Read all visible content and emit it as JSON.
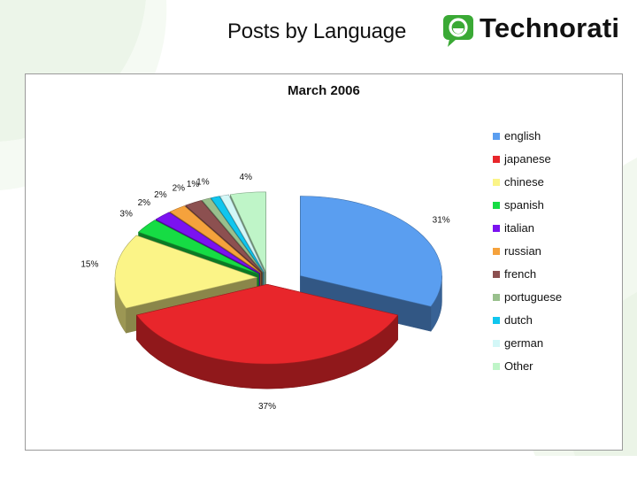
{
  "slide": {
    "title": "Posts by Language",
    "logo_text": "Technorati",
    "logo_color": "#3aa935"
  },
  "chart_data": {
    "type": "pie",
    "title": "March 2006",
    "legend_position": "right",
    "slices": [
      {
        "name": "english",
        "value": 31,
        "label": "31%",
        "color": "#5a9ef0"
      },
      {
        "name": "japanese",
        "value": 37,
        "label": "37%",
        "color": "#e8262b"
      },
      {
        "name": "chinese",
        "value": 15,
        "label": "15%",
        "color": "#fbf487"
      },
      {
        "name": "spanish",
        "value": 3,
        "label": "3%",
        "color": "#16dc44"
      },
      {
        "name": "italian",
        "value": 2,
        "label": "2%",
        "color": "#7b12f0"
      },
      {
        "name": "russian",
        "value": 2,
        "label": "2%",
        "color": "#f5a23c"
      },
      {
        "name": "french",
        "value": 2,
        "label": "2%",
        "color": "#8c5050"
      },
      {
        "name": "portuguese",
        "value": 1,
        "label": "1%",
        "color": "#99c08d"
      },
      {
        "name": "dutch",
        "value": 1,
        "label": "1%",
        "color": "#10c6ee"
      },
      {
        "name": "german",
        "value": 1,
        "label": "",
        "color": "#d3f7f7"
      },
      {
        "name": "Other",
        "value": 4,
        "label": "4%",
        "color": "#bff5c8"
      }
    ]
  }
}
